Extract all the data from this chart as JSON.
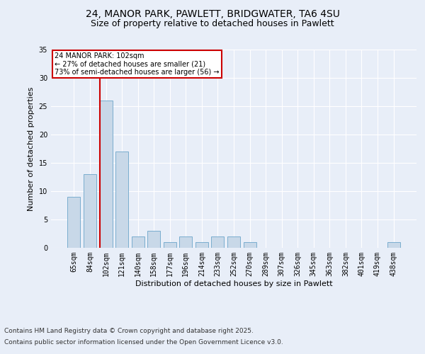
{
  "title_line1": "24, MANOR PARK, PAWLETT, BRIDGWATER, TA6 4SU",
  "title_line2": "Size of property relative to detached houses in Pawlett",
  "xlabel": "Distribution of detached houses by size in Pawlett",
  "ylabel": "Number of detached properties",
  "categories": [
    "65sqm",
    "84sqm",
    "102sqm",
    "121sqm",
    "140sqm",
    "158sqm",
    "177sqm",
    "196sqm",
    "214sqm",
    "233sqm",
    "252sqm",
    "270sqm",
    "289sqm",
    "307sqm",
    "326sqm",
    "345sqm",
    "363sqm",
    "382sqm",
    "401sqm",
    "419sqm",
    "438sqm"
  ],
  "values": [
    9,
    13,
    26,
    17,
    2,
    3,
    1,
    2,
    1,
    2,
    2,
    1,
    0,
    0,
    0,
    0,
    0,
    0,
    0,
    0,
    1
  ],
  "bar_color": "#c8d8e8",
  "bar_edge_color": "#7aadce",
  "highlight_index": 2,
  "highlight_line_color": "#cc0000",
  "ylim": [
    0,
    35
  ],
  "yticks": [
    0,
    5,
    10,
    15,
    20,
    25,
    30,
    35
  ],
  "annotation_text": "24 MANOR PARK: 102sqm\n← 27% of detached houses are smaller (21)\n73% of semi-detached houses are larger (56) →",
  "annotation_box_color": "#ffffff",
  "annotation_box_edge": "#cc0000",
  "footer_line1": "Contains HM Land Registry data © Crown copyright and database right 2025.",
  "footer_line2": "Contains public sector information licensed under the Open Government Licence v3.0.",
  "bg_color": "#e8eef8",
  "plot_bg_color": "#e8eef8",
  "grid_color": "#ffffff",
  "title_fontsize": 10,
  "subtitle_fontsize": 9,
  "axis_label_fontsize": 8,
  "tick_fontsize": 7,
  "footer_fontsize": 6.5
}
